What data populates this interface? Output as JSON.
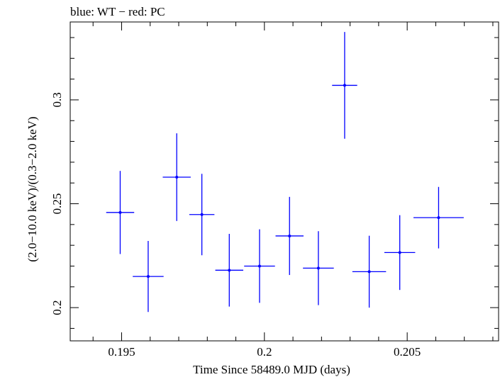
{
  "chart_data": {
    "type": "scatter",
    "title": "blue: WT − red: PC",
    "xlabel": "Time Since 58489.0 MJD (days)",
    "ylabel": "(2.0−10.0 keV)/(0.3−2.0 keV)",
    "xlim": [
      0.1932,
      0.2082
    ],
    "ylim": [
      0.184,
      0.3375
    ],
    "x_ticks": [
      0.195,
      0.2,
      0.205
    ],
    "x_tick_labels": [
      "0.195",
      "0.2",
      "0.205"
    ],
    "y_ticks": [
      0.2,
      0.25,
      0.3
    ],
    "y_tick_labels": [
      "0.2",
      "0.25",
      "0.3"
    ],
    "grid": false,
    "series": [
      {
        "color": "#0000ff",
        "points": [
          {
            "x": 0.19495,
            "xerr": 0.00049,
            "y": 0.2458,
            "yerr": 0.02
          },
          {
            "x": 0.19593,
            "xerr": 0.00054,
            "y": 0.215,
            "yerr": 0.0171
          },
          {
            "x": 0.19693,
            "xerr": 0.00049,
            "y": 0.2628,
            "yerr": 0.0211
          },
          {
            "x": 0.19781,
            "xerr": 0.00044,
            "y": 0.2448,
            "yerr": 0.0196
          },
          {
            "x": 0.19877,
            "xerr": 0.00049,
            "y": 0.218,
            "yerr": 0.0175
          },
          {
            "x": 0.19983,
            "xerr": 0.00054,
            "y": 0.22,
            "yerr": 0.0177
          },
          {
            "x": 0.20088,
            "xerr": 0.00049,
            "y": 0.2345,
            "yerr": 0.0188
          },
          {
            "x": 0.20189,
            "xerr": 0.00054,
            "y": 0.219,
            "yerr": 0.0178
          },
          {
            "x": 0.20281,
            "xerr": 0.00044,
            "y": 0.307,
            "yerr": 0.0257
          },
          {
            "x": 0.20367,
            "xerr": 0.00059,
            "y": 0.2173,
            "yerr": 0.0173
          },
          {
            "x": 0.20474,
            "xerr": 0.00054,
            "y": 0.2265,
            "yerr": 0.018
          },
          {
            "x": 0.2061,
            "xerr": 0.00088,
            "y": 0.2433,
            "yerr": 0.0148
          }
        ]
      }
    ]
  }
}
